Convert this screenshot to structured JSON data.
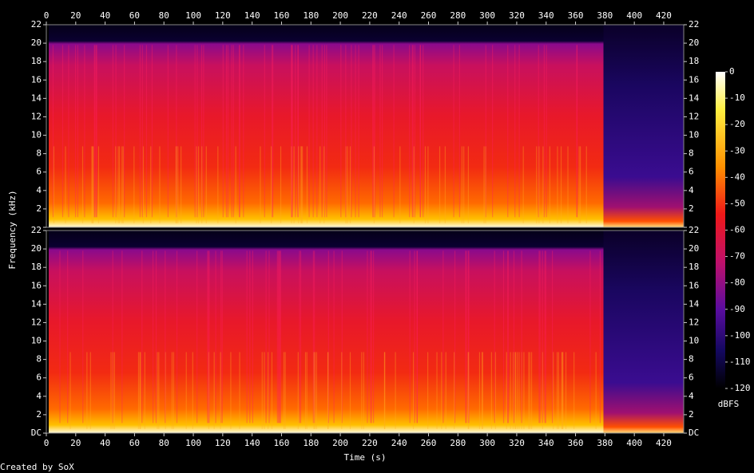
{
  "chart_data": {
    "type": "spectrogram",
    "xlabel": "Time (s)",
    "ylabel": "Frequency (kHz)",
    "xlim": [
      0,
      433.6
    ],
    "xticks": [
      0,
      20,
      40,
      60,
      80,
      100,
      120,
      140,
      160,
      180,
      200,
      220,
      240,
      260,
      280,
      300,
      320,
      340,
      360,
      380,
      400,
      420
    ],
    "ylim": [
      0,
      22
    ],
    "yticks": [
      {
        "value": 0,
        "label": "DC"
      },
      2,
      4,
      6,
      8,
      10,
      12,
      14,
      16,
      18,
      20,
      22
    ],
    "colorbar": {
      "label": "dBFS",
      "lim": [
        -120,
        0
      ],
      "ticks": [
        0,
        -10,
        -20,
        -30,
        -40,
        -50,
        -60,
        -70,
        -80,
        -90,
        -100,
        -110,
        -120
      ]
    },
    "credit": "Created by SoX"
  }
}
